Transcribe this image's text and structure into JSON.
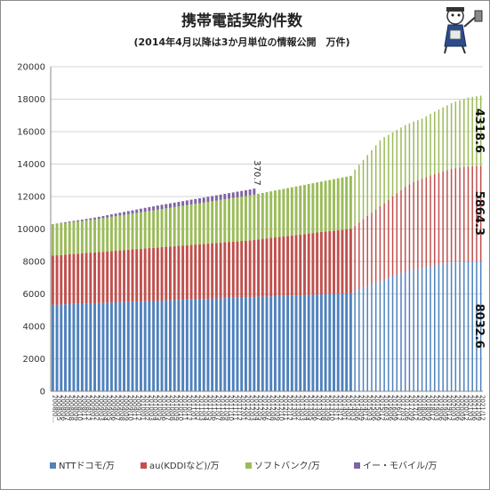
{
  "chart_data": {
    "type": "bar",
    "stacked": true,
    "title": "携帯電話契約件数",
    "subtitle": "(2014年4月以降は3か月単位の情報公開　万件)",
    "xlabel": "",
    "ylabel": "",
    "ylim": [
      0,
      20000
    ],
    "yticks": [
      0,
      2000,
      4000,
      6000,
      8000,
      10000,
      12000,
      14000,
      16000,
      18000,
      20000
    ],
    "grid": true,
    "legend_position": "bottom",
    "x_tick_labels": [
      "2008/0...",
      "2008/05",
      "2008/06",
      "2008/07",
      "2008/08",
      "2008/09",
      "2008/10",
      "2008/11",
      "2008/12",
      "2009/01",
      "2009/02",
      "2009/03",
      "2009/04",
      "2009/05",
      "2009/06",
      "2009/07",
      "2009/08",
      "2009/09",
      "2009/10",
      "2009/11",
      "2009/12",
      "2010/01",
      "2010/02",
      "2010/03",
      "2010/04",
      "2010/05",
      "2010/06",
      "2010/07",
      "2010/08",
      "2010/09",
      "2010/10",
      "2010/11",
      "2010/12",
      "2011/01",
      "2011/02",
      "2011/03",
      "2011/04",
      "2011/05",
      "2011/06",
      "2011/07",
      "2011/08",
      "2011/09",
      "2011/10",
      "2011/11",
      "2011/12",
      "2012/01",
      "2012/02",
      "2012/03",
      "2012/04",
      "2012/05",
      "2012/06",
      "2012/07",
      "2012/08",
      "2012/09",
      "2012/10",
      "2012/11",
      "2012/12",
      "2013/01",
      "2013/02",
      "2013/03",
      "2013/04",
      "2013/05",
      "2013/06",
      "2013/07",
      "2013/08",
      "2013/09",
      "2013/10",
      "2013/11",
      "2013/12",
      "2014/01",
      "2014/02",
      "2014/03",
      "2014/06",
      "2014/09",
      "2014/12",
      "2015/03",
      "2015/06",
      "2015/09",
      "2015/12",
      "2016/03",
      "2016/06",
      "2016/09",
      "2016/12",
      "2017/03",
      "2017/06",
      "2017/09",
      "2017/12",
      "2018/03",
      "2018/06",
      "2018/09",
      "2018/12",
      "2019/03",
      "2019/06",
      "2019/09",
      "2019/12",
      "2020/03",
      "2020/06",
      "2020/09",
      "2020/12",
      "2021/03",
      "2021/06",
      "2021/09",
      "2021/12"
    ],
    "series": [
      {
        "name": "NTTドコモ/万",
        "color": "#4f81bd",
        "values": [
          5330,
          5340,
          5350,
          5360,
          5370,
          5380,
          5390,
          5400,
          5410,
          5420,
          5430,
          5440,
          5445,
          5460,
          5470,
          5480,
          5490,
          5500,
          5510,
          5520,
          5530,
          5540,
          5550,
          5560,
          5565,
          5580,
          5590,
          5600,
          5610,
          5620,
          5630,
          5640,
          5650,
          5660,
          5670,
          5680,
          5685,
          5700,
          5710,
          5720,
          5730,
          5740,
          5750,
          5760,
          5770,
          5780,
          5790,
          5800,
          5805,
          5820,
          5830,
          5840,
          5850,
          5860,
          5870,
          5880,
          5890,
          5900,
          5910,
          5920,
          5925,
          5940,
          5950,
          5960,
          5970,
          5980,
          5990,
          6000,
          6010,
          6020,
          6030,
          6040,
          6200,
          6300,
          6400,
          6500,
          6600,
          6700,
          6800,
          6900,
          7000,
          7100,
          7200,
          7300,
          7400,
          7450,
          7500,
          7550,
          7600,
          7650,
          7700,
          7750,
          7800,
          7850,
          7900,
          7950,
          7970,
          7990,
          8000,
          8010,
          8020,
          8026,
          8032.6
        ]
      },
      {
        "name": "au(KDDIなど)/万",
        "color": "#c0504d",
        "values": [
          3030,
          3040,
          3050,
          3060,
          3070,
          3080,
          3090,
          3100,
          3110,
          3120,
          3130,
          3140,
          3150,
          3160,
          3170,
          3180,
          3190,
          3200,
          3210,
          3220,
          3230,
          3240,
          3250,
          3260,
          3270,
          3280,
          3290,
          3300,
          3310,
          3320,
          3330,
          3340,
          3350,
          3360,
          3370,
          3380,
          3390,
          3400,
          3410,
          3420,
          3430,
          3440,
          3450,
          3460,
          3470,
          3480,
          3490,
          3500,
          3520,
          3540,
          3560,
          3580,
          3600,
          3620,
          3640,
          3660,
          3680,
          3700,
          3720,
          3740,
          3760,
          3780,
          3800,
          3820,
          3840,
          3860,
          3880,
          3900,
          3920,
          3940,
          3960,
          3980,
          4000,
          4100,
          4200,
          4300,
          4400,
          4500,
          4600,
          4700,
          4800,
          4900,
          5000,
          5100,
          5200,
          5300,
          5400,
          5450,
          5500,
          5550,
          5600,
          5630,
          5660,
          5690,
          5720,
          5750,
          5780,
          5800,
          5820,
          5835,
          5845,
          5855,
          5864.3
        ]
      },
      {
        "name": "ソフトバンク/万",
        "color": "#9bbb59",
        "values": [
          1930,
          1940,
          1950,
          1960,
          1970,
          1980,
          1990,
          2000,
          2010,
          2020,
          2030,
          2050,
          2070,
          2090,
          2110,
          2130,
          2150,
          2170,
          2190,
          2210,
          2230,
          2250,
          2270,
          2290,
          2310,
          2330,
          2350,
          2370,
          2390,
          2410,
          2430,
          2450,
          2470,
          2490,
          2510,
          2530,
          2550,
          2570,
          2590,
          2610,
          2630,
          2650,
          2670,
          2690,
          2710,
          2730,
          2750,
          2770,
          2790,
          2810,
          2830,
          2850,
          2870,
          2890,
          2910,
          2930,
          2950,
          2970,
          2990,
          3010,
          3030,
          3050,
          3070,
          3090,
          3110,
          3130,
          3150,
          3170,
          3190,
          3210,
          3230,
          3250,
          3460,
          3560,
          3660,
          3760,
          3860,
          3960,
          4060,
          4060,
          4000,
          3950,
          3900,
          3850,
          3800,
          3760,
          3720,
          3700,
          3700,
          3750,
          3800,
          3850,
          3900,
          3950,
          4000,
          4050,
          4100,
          4150,
          4200,
          4250,
          4270,
          4300,
          4318.6
        ]
      },
      {
        "name": "イー・モバイル/万",
        "color": "#8064a2",
        "values": [
          10,
          20,
          30,
          40,
          50,
          60,
          70,
          80,
          90,
          100,
          110,
          120,
          130,
          140,
          150,
          160,
          170,
          180,
          190,
          200,
          210,
          220,
          230,
          240,
          250,
          255,
          260,
          265,
          270,
          275,
          280,
          285,
          290,
          295,
          300,
          305,
          310,
          315,
          320,
          325,
          330,
          335,
          340,
          345,
          350,
          355,
          360,
          365,
          370.7,
          0,
          0,
          0,
          0,
          0,
          0,
          0,
          0,
          0,
          0,
          0,
          0,
          0,
          0,
          0,
          0,
          0,
          0,
          0,
          0,
          0,
          0,
          0,
          0,
          0,
          0,
          0,
          0,
          0,
          0,
          0,
          0,
          0,
          0,
          0,
          0,
          0,
          0,
          0,
          0,
          0,
          0,
          0,
          0,
          0,
          0,
          0,
          0,
          0,
          0,
          0,
          0,
          0,
          0
        ]
      }
    ],
    "annotations": [
      {
        "text": "370.7",
        "series": "イー・モバイル/万"
      },
      {
        "text": "4318.6",
        "series": "ソフトバンク/万"
      },
      {
        "text": "5864.3",
        "series": "au(KDDIなど)/万"
      },
      {
        "text": "8032.6",
        "series": "NTTドコモ/万"
      }
    ]
  },
  "mascot": {
    "icon": "mascot-illustration-icon"
  }
}
